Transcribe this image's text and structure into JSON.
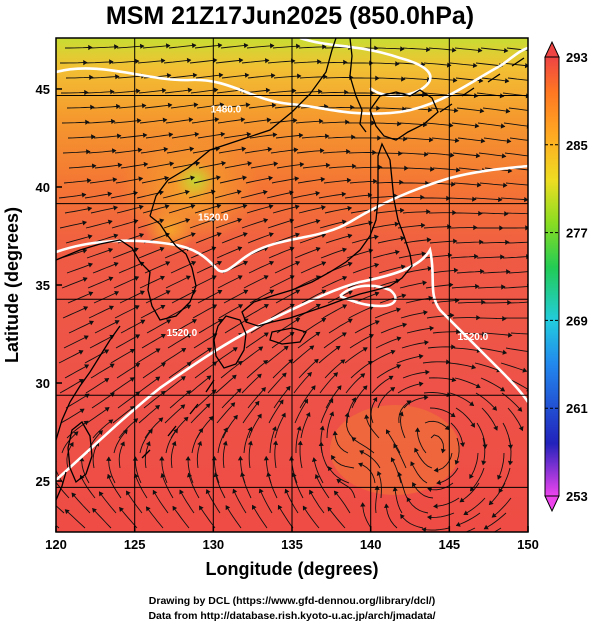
{
  "title": "MSM 21Z17Jun2025 (850.0hPa)",
  "x_axis": {
    "label": "Longitude (degrees)",
    "range": [
      120,
      150
    ],
    "ticks": [
      120,
      125,
      130,
      135,
      140,
      145,
      150
    ]
  },
  "y_axis": {
    "label": "Latitude  (degrees)",
    "range": [
      22.4,
      47.6
    ],
    "ticks": [
      25,
      30,
      35,
      40,
      45
    ]
  },
  "colorbar": {
    "range": [
      253,
      293
    ],
    "ticks": [
      293,
      285,
      277,
      269,
      261,
      253
    ],
    "colors": [
      "#ee44ee",
      "#2222bb",
      "#2288ee",
      "#22ccdd",
      "#22cc55",
      "#88dd22",
      "#eedd22",
      "#ffaa22",
      "#ff7722",
      "#ee4444"
    ]
  },
  "contour_labels": [
    {
      "text": "1480.0",
      "lon": 130.8,
      "lat": 43.8
    },
    {
      "text": "1520.0",
      "lon": 130.0,
      "lat": 38.3
    },
    {
      "text": "1520.0",
      "lon": 128.0,
      "lat": 32.4
    },
    {
      "text": "1520.0",
      "lon": 146.5,
      "lat": 32.2
    }
  ],
  "credits": {
    "line1": "Drawing by DCL (https://www.gfd-dennou.org/library/dcl/)",
    "line2": "Data from http://database.rish.kyoto-u.ac.jp/arch/jmadata/"
  }
}
